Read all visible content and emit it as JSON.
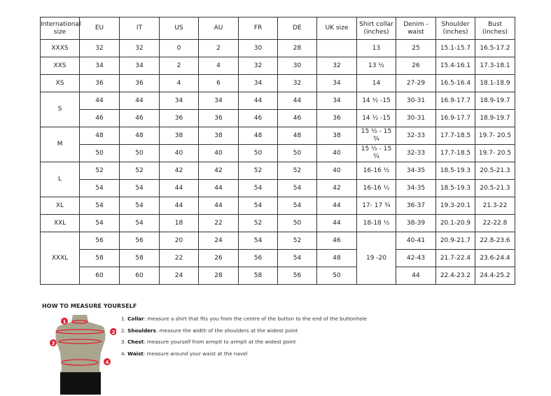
{
  "table": {
    "headers": [
      "International size",
      "EU",
      "IT",
      "US",
      "AU",
      "FR",
      "DE",
      "UK size",
      "Shirt collar (inches)",
      "Denim - waist",
      "Shoulder (inches)",
      "Bust (inches)"
    ],
    "rows": [
      {
        "size": "XXXS",
        "span": 1,
        "cells": [
          "32",
          "32",
          "0",
          "2",
          "30",
          "28",
          ""
        ],
        "collar": "13",
        "collar_span": 1,
        "rest": [
          "25",
          "15.1-15.7",
          "16.5-17.2"
        ]
      },
      {
        "size": "XXS",
        "span": 1,
        "cells": [
          "34",
          "34",
          "2",
          "4",
          "32",
          "30",
          "32"
        ],
        "collar": "13 ½",
        "collar_span": 1,
        "rest": [
          "26",
          "15.4-16.1",
          "17.3-18.1"
        ]
      },
      {
        "size": "XS",
        "span": 1,
        "cells": [
          "36",
          "36",
          "4",
          "6",
          "34",
          "32",
          "34"
        ],
        "collar": "14",
        "collar_span": 1,
        "rest": [
          "27-29",
          "16.5-16.4",
          "18.1-18.9"
        ]
      },
      {
        "size": "S",
        "span": 2,
        "cells": [
          "44",
          "44",
          "34",
          "34",
          "44",
          "44",
          "34"
        ],
        "collar": "14 ½ -15",
        "collar_span": 1,
        "rest": [
          "30-31",
          "16.9-17.7",
          "18.9-19.7"
        ]
      },
      {
        "cells": [
          "46",
          "46",
          "36",
          "36",
          "46",
          "46",
          "36"
        ],
        "collar": "14 ½ -15",
        "collar_span": 1,
        "rest": [
          "30-31",
          "16.9-17.7",
          "18.9-19.7"
        ]
      },
      {
        "size": "M",
        "span": 2,
        "cells": [
          "48",
          "48",
          "38",
          "38",
          "48",
          "48",
          "38"
        ],
        "collar": "15 ½ - 15 ¾",
        "collar_span": 1,
        "rest": [
          "32-33",
          "17.7-18.5",
          "19.7- 20.5"
        ]
      },
      {
        "cells": [
          "50",
          "50",
          "40",
          "40",
          "50",
          "50",
          "40"
        ],
        "collar": "15 ½ - 15 ¾",
        "collar_span": 1,
        "rest": [
          "32-33",
          "17.7-18.5",
          "19.7- 20.5"
        ]
      },
      {
        "size": "L",
        "span": 2,
        "cells": [
          "52",
          "52",
          "42",
          "42",
          "52",
          "52",
          "40"
        ],
        "collar": "16-16 ½",
        "collar_span": 1,
        "rest": [
          "34-35",
          "18.5-19.3",
          "20.5-21.3"
        ]
      },
      {
        "cells": [
          "54",
          "54",
          "44",
          "44",
          "54",
          "54",
          "42"
        ],
        "collar": "16-16 ½",
        "collar_span": 1,
        "rest": [
          "34-35",
          "18.5-19.3",
          "20.5-21.3"
        ]
      },
      {
        "size": "XL",
        "span": 1,
        "cells": [
          "54",
          "54",
          "44",
          "44",
          "54",
          "54",
          "44"
        ],
        "collar": "17- 17 ¾",
        "collar_span": 1,
        "rest": [
          "36-37",
          "19.3-20.1",
          "21.3-22"
        ]
      },
      {
        "size": "XXL",
        "span": 1,
        "cells": [
          "54",
          "54",
          "18",
          "22",
          "52",
          "50",
          "44"
        ],
        "collar": "18-18 ½",
        "collar_span": 1,
        "rest": [
          "38-39",
          "20.1-20.9",
          "22-22.8"
        ]
      },
      {
        "size": "XXXL",
        "span": 3,
        "cells": [
          "56",
          "56",
          "20",
          "24",
          "54",
          "52",
          "46"
        ],
        "collar": "19 -20",
        "collar_span": 3,
        "rest": [
          "40-41",
          "20.9-21.7",
          "22.8-23.6"
        ]
      },
      {
        "cells": [
          "58",
          "58",
          "22",
          "26",
          "56",
          "54",
          "48"
        ],
        "rest": [
          "42-43",
          "21.7-22.4",
          "23.6-24.4"
        ]
      },
      {
        "cells": [
          "60",
          "60",
          "24",
          "28",
          "58",
          "56",
          "50"
        ],
        "rest": [
          "44",
          "22.4-23.2",
          "24.4-25.2"
        ]
      }
    ]
  },
  "measure": {
    "title": "HOW TO MEASURE YOURSELF",
    "items": [
      {
        "num": "1.",
        "term": "Collar",
        "text": ": measure a shirt that fits you from the centre of the button to the end of the buttonhole"
      },
      {
        "num": "2.",
        "term": "Shoulders",
        "text": ": measure the width of the shoulders at the widest point"
      },
      {
        "num": "3.",
        "term": "Chest",
        "text": ": measure yourself from armpit to armpit at the widest point"
      },
      {
        "num": "4.",
        "term": "Waist",
        "text": ": measure around your waist at the navel"
      }
    ],
    "markers": [
      "1",
      "2",
      "3",
      "4"
    ],
    "accent": "#e0202e"
  }
}
